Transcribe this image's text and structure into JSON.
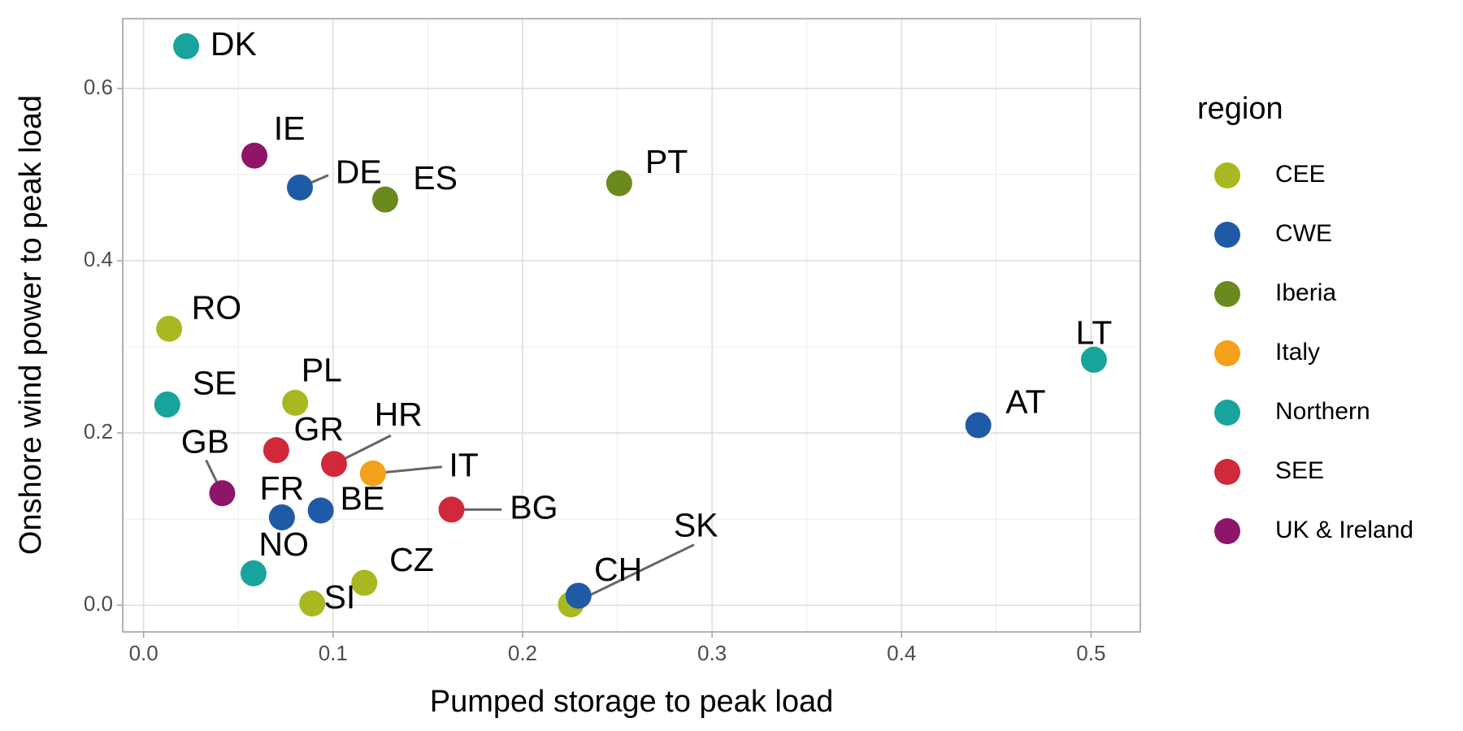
{
  "chart_data": {
    "type": "scatter",
    "x_label": "Pumped storage to peak load",
    "y_label": "Onshore wind power to peak load",
    "legend_title": "region",
    "legend_position": "right",
    "grid": true,
    "xlim": [
      -0.011,
      0.526
    ],
    "ylim": [
      -0.031,
      0.681
    ],
    "xticks": [
      {
        "value": 0,
        "label": "0.0"
      },
      0.1,
      0.2,
      0.3,
      0.4,
      0.5
    ],
    "yticks": [
      {
        "value": 0,
        "label": "0.0"
      },
      0.2,
      0.4,
      0.6
    ],
    "series": [
      {
        "name": "CEE",
        "color": "#a8b820",
        "labels": [
          "RO",
          "PL",
          "CZ",
          "SI",
          "SK"
        ],
        "x": [
          0.0135,
          0.08,
          0.1165,
          0.089,
          0.2255
        ],
        "y": [
          0.321,
          0.235,
          0.026,
          0.002,
          0.001
        ]
      },
      {
        "name": "CWE",
        "color": "#1f5aa6",
        "labels": [
          "DE",
          "AT",
          "FR",
          "BE",
          "CH"
        ],
        "x": [
          0.0825,
          0.4405,
          0.073,
          0.0935,
          0.2295
        ],
        "y": [
          0.485,
          0.209,
          0.102,
          0.11,
          0.011
        ]
      },
      {
        "name": "Iberia",
        "color": "#6b8a1e",
        "labels": [
          "ES",
          "PT"
        ],
        "x": [
          0.1275,
          0.251
        ],
        "y": [
          0.471,
          0.49
        ]
      },
      {
        "name": "Italy",
        "color": "#f5a01a",
        "labels": [
          "IT"
        ],
        "x": [
          0.121
        ],
        "y": [
          0.153
        ]
      },
      {
        "name": "Northern",
        "color": "#18a39c",
        "labels": [
          "DK",
          "LT",
          "SE",
          "NO"
        ],
        "x": [
          0.0225,
          0.5015,
          0.0125,
          0.058
        ],
        "y": [
          0.649,
          0.285,
          0.233,
          0.037
        ]
      },
      {
        "name": "SEE",
        "color": "#d0293a",
        "labels": [
          "GR",
          "HR",
          "BG"
        ],
        "x": [
          0.07,
          0.1005,
          0.1625
        ],
        "y": [
          0.18,
          0.164,
          0.111
        ]
      },
      {
        "name": "UK & Ireland",
        "color": "#8e1568",
        "labels": [
          "IE",
          "GB"
        ],
        "x": [
          0.0585,
          0.0415
        ],
        "y": [
          0.522,
          0.13
        ]
      }
    ]
  }
}
